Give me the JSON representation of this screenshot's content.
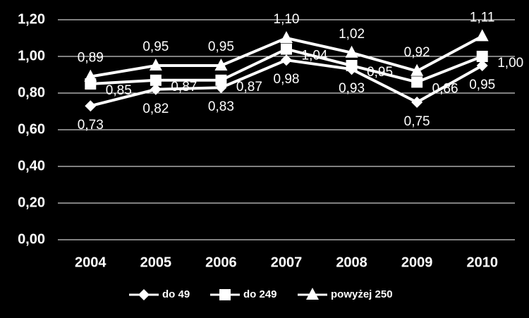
{
  "chart_data": {
    "type": "line",
    "categories": [
      "2004",
      "2005",
      "2006",
      "2007",
      "2008",
      "2009",
      "2010"
    ],
    "series": [
      {
        "name": "do 49",
        "color": "#ffffff",
        "marker": "diamond",
        "values": [
          0.73,
          0.82,
          0.83,
          0.98,
          0.93,
          0.75,
          0.95
        ],
        "value_labels": [
          "0,73",
          "0,82",
          "0,83",
          "0,98",
          "0,93",
          "0,75",
          "0,95"
        ]
      },
      {
        "name": "do 249",
        "color": "#ffffff",
        "marker": "square",
        "values": [
          0.85,
          0.87,
          0.87,
          1.04,
          0.95,
          0.86,
          1.0
        ],
        "value_labels": [
          "0,85",
          "0,87",
          "0,87",
          "1,04",
          "0,95",
          "0,86",
          "1,00"
        ]
      },
      {
        "name": "powyżej 250",
        "color": "#ffffff",
        "marker": "triangle",
        "values": [
          0.89,
          0.95,
          0.95,
          1.1,
          1.02,
          0.92,
          1.11
        ],
        "value_labels": [
          "0,89",
          "0,95",
          "0,95",
          "1,10",
          "1,02",
          "0,92",
          "1,11"
        ]
      }
    ],
    "ylim": [
      0,
      1.2
    ],
    "yticks": [
      {
        "value": 0,
        "label": "0,00"
      },
      {
        "value": 0.2,
        "label": "0,20"
      },
      {
        "value": 0.4,
        "label": "0,40"
      },
      {
        "value": 0.6,
        "label": "0,60"
      },
      {
        "value": 0.8,
        "label": "0,80"
      },
      {
        "value": 1,
        "label": "1,00"
      },
      {
        "value": 1.2,
        "label": "1,20"
      }
    ],
    "grid": true,
    "legend": "bottom"
  }
}
